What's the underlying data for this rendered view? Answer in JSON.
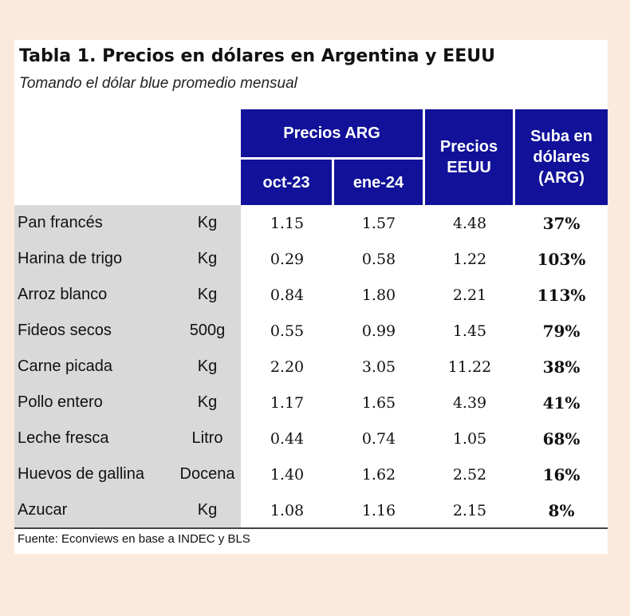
{
  "title": "Tabla 1. Precios en dólares en Argentina y EEUU",
  "subtitle": "Tomando el dólar blue promedio mensual",
  "headers": {
    "precios_arg": "Precios ARG",
    "oct": "oct-23",
    "ene": "ene-24",
    "precios_eeuu": "Precios EEUU",
    "suba": "Suba en dólares (ARG)"
  },
  "rows": [
    {
      "product": "Pan francés",
      "unit": "Kg",
      "oct": "1.15",
      "ene": "1.57",
      "eeuu": "4.48",
      "suba": "37%"
    },
    {
      "product": "Harina de trigo",
      "unit": "Kg",
      "oct": "0.29",
      "ene": "0.58",
      "eeuu": "1.22",
      "suba": "103%"
    },
    {
      "product": "Arroz blanco",
      "unit": "Kg",
      "oct": "0.84",
      "ene": "1.80",
      "eeuu": "2.21",
      "suba": "113%"
    },
    {
      "product": "Fideos secos",
      "unit": "500g",
      "oct": "0.55",
      "ene": "0.99",
      "eeuu": "1.45",
      "suba": "79%"
    },
    {
      "product": "Carne picada",
      "unit": "Kg",
      "oct": "2.20",
      "ene": "3.05",
      "eeuu": "11.22",
      "suba": "38%"
    },
    {
      "product": "Pollo entero",
      "unit": "Kg",
      "oct": "1.17",
      "ene": "1.65",
      "eeuu": "4.39",
      "suba": "41%"
    },
    {
      "product": "Leche fresca",
      "unit": "Litro",
      "oct": "0.44",
      "ene": "0.74",
      "eeuu": "1.05",
      "suba": "68%"
    },
    {
      "product": "Huevos de gallina",
      "unit": "Docena",
      "oct": "1.40",
      "ene": "1.62",
      "eeuu": "2.52",
      "suba": "16%"
    },
    {
      "product": "Azucar",
      "unit": "Kg",
      "oct": "1.08",
      "ene": "1.16",
      "eeuu": "2.15",
      "suba": "8%"
    }
  ],
  "source": "Fuente: Econviews en base a INDEC y BLS",
  "colors": {
    "header_bg": "#111199",
    "label_bg": "#d9d9d9",
    "page_bg": "#fbe9dd"
  }
}
